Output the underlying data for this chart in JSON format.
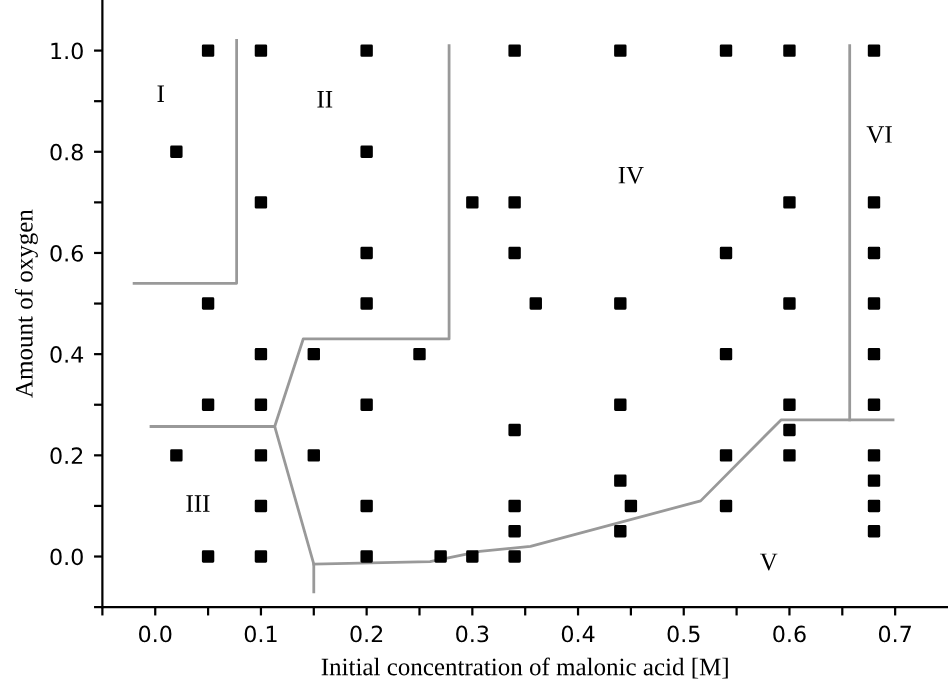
{
  "chart_data": {
    "type": "scatter",
    "xlabel": "Initial concentration of malonic acid [M]",
    "ylabel": "Amount of oxygen",
    "xlim": [
      -0.05,
      0.75
    ],
    "ylim": [
      -0.1,
      1.1
    ],
    "xticks": [
      {
        "value": -0.05,
        "label": null
      },
      {
        "value": 0.0,
        "label": "0.0"
      },
      {
        "value": 0.05,
        "label": null
      },
      {
        "value": 0.1,
        "label": "0.1"
      },
      {
        "value": 0.15,
        "label": null
      },
      {
        "value": 0.2,
        "label": "0.2"
      },
      {
        "value": 0.25,
        "label": null
      },
      {
        "value": 0.3,
        "label": "0.3"
      },
      {
        "value": 0.35,
        "label": null
      },
      {
        "value": 0.4,
        "label": "0.4"
      },
      {
        "value": 0.45,
        "label": null
      },
      {
        "value": 0.5,
        "label": "0.5"
      },
      {
        "value": 0.55,
        "label": null
      },
      {
        "value": 0.6,
        "label": "0.6"
      },
      {
        "value": 0.65,
        "label": null
      },
      {
        "value": 0.7,
        "label": "0.7"
      }
    ],
    "yticks": [
      {
        "value": -0.1,
        "label": null
      },
      {
        "value": 0.0,
        "label": "0.0"
      },
      {
        "value": 0.1,
        "label": null
      },
      {
        "value": 0.2,
        "label": "0.2"
      },
      {
        "value": 0.3,
        "label": null
      },
      {
        "value": 0.4,
        "label": "0.4"
      },
      {
        "value": 0.5,
        "label": null
      },
      {
        "value": 0.6,
        "label": "0.6"
      },
      {
        "value": 0.7,
        "label": null
      },
      {
        "value": 0.8,
        "label": "0.8"
      },
      {
        "value": 0.9,
        "label": null
      },
      {
        "value": 1.0,
        "label": "1.0"
      }
    ],
    "grid": false,
    "legend": false,
    "series": [
      {
        "color": "#000000",
        "marker": "square",
        "x": [
          0.05,
          0.1,
          0.2,
          0.34,
          0.44,
          0.54,
          0.6,
          0.68,
          0.02,
          0.2,
          0.1,
          0.3,
          0.34,
          0.6,
          0.68,
          0.2,
          0.34,
          0.54,
          0.68,
          0.05,
          0.2,
          0.36,
          0.44,
          0.6,
          0.68,
          0.1,
          0.15,
          0.25,
          0.54,
          0.68,
          0.05,
          0.1,
          0.2,
          0.44,
          0.6,
          0.68,
          0.34,
          0.6,
          0.02,
          0.1,
          0.15,
          0.54,
          0.6,
          0.68,
          0.44,
          0.68,
          0.1,
          0.2,
          0.34,
          0.45,
          0.54,
          0.68,
          0.34,
          0.44,
          0.68,
          0.05,
          0.1,
          0.2,
          0.27,
          0.3,
          0.34
        ],
        "values": [
          1.0,
          1.0,
          1.0,
          1.0,
          1.0,
          1.0,
          1.0,
          1.0,
          0.8,
          0.8,
          0.7,
          0.7,
          0.7,
          0.7,
          0.7,
          0.6,
          0.6,
          0.6,
          0.6,
          0.5,
          0.5,
          0.5,
          0.5,
          0.5,
          0.5,
          0.4,
          0.4,
          0.4,
          0.4,
          0.4,
          0.3,
          0.3,
          0.3,
          0.3,
          0.3,
          0.3,
          0.25,
          0.25,
          0.2,
          0.2,
          0.2,
          0.2,
          0.2,
          0.2,
          0.15,
          0.15,
          0.1,
          0.1,
          0.1,
          0.1,
          0.1,
          0.1,
          0.05,
          0.05,
          0.05,
          0.0,
          0.0,
          0.0,
          0.0,
          0.0,
          0.0
        ]
      },
      {
        "type": "line",
        "color": "#999999",
        "x": [
          -0.02,
          0.077,
          0.077
        ],
        "values": [
          0.54,
          0.54,
          1.02
        ]
      },
      {
        "type": "line",
        "color": "#999999",
        "x": [
          0.278,
          0.278,
          0.14,
          0.113,
          0.15,
          0.15
        ],
        "values": [
          1.01,
          0.43,
          0.43,
          0.257,
          -0.015,
          -0.07
        ]
      },
      {
        "type": "line",
        "color": "#999999",
        "x": [
          -0.004,
          0.113
        ],
        "values": [
          0.257,
          0.257
        ]
      },
      {
        "type": "line",
        "color": "#999999",
        "x": [
          0.15,
          0.26,
          0.307,
          0.355,
          0.516,
          0.592,
          0.698
        ],
        "values": [
          -0.015,
          -0.01,
          0.01,
          0.02,
          0.11,
          0.27,
          0.27
        ]
      },
      {
        "type": "line",
        "color": "#999999",
        "x": [
          0.657,
          0.657
        ],
        "values": [
          0.27,
          1.01
        ]
      }
    ],
    "annotations": [
      "I",
      "II",
      "III",
      "IV",
      "V",
      "VI"
    ]
  }
}
